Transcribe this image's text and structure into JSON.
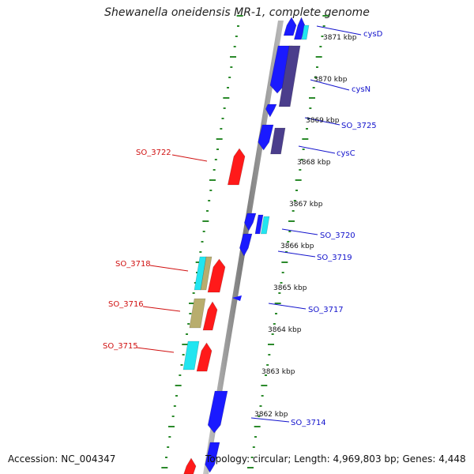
{
  "title": "Shewanella oneidensis MR-1, complete genome",
  "footer": {
    "accession": "Accession: NC_004347",
    "summary": "Topology: circular; Length: 4,969,803 bp; Genes: 4,448"
  },
  "colors": {
    "forward_gene": "#1a1aff",
    "reverse_gene": "#ff1a1a",
    "dark_gene": "#4b3e8c",
    "cyan_gene": "#22e5f0",
    "tan_gene": "#b8ad6e",
    "backbone": "#8a8a8a",
    "tick": "#2b8a2b",
    "label_forward": "#1212cc",
    "label_reverse": "#d01010"
  },
  "kbp_ticks": [
    "3871 kbp",
    "3870 kbp",
    "3869 kbp",
    "3868 kbp",
    "3867 kbp",
    "3866 kbp",
    "3865 kbp",
    "3864 kbp",
    "3863 kbp",
    "3862 kbp"
  ],
  "forward_labels": [
    "cysD",
    "cysN",
    "SO_3725",
    "cysC",
    "SO_3720",
    "SO_3719",
    "SO_3717",
    "SO_3714"
  ],
  "reverse_labels": [
    "SO_3722",
    "SO_3718",
    "SO_3716",
    "SO_3715"
  ]
}
